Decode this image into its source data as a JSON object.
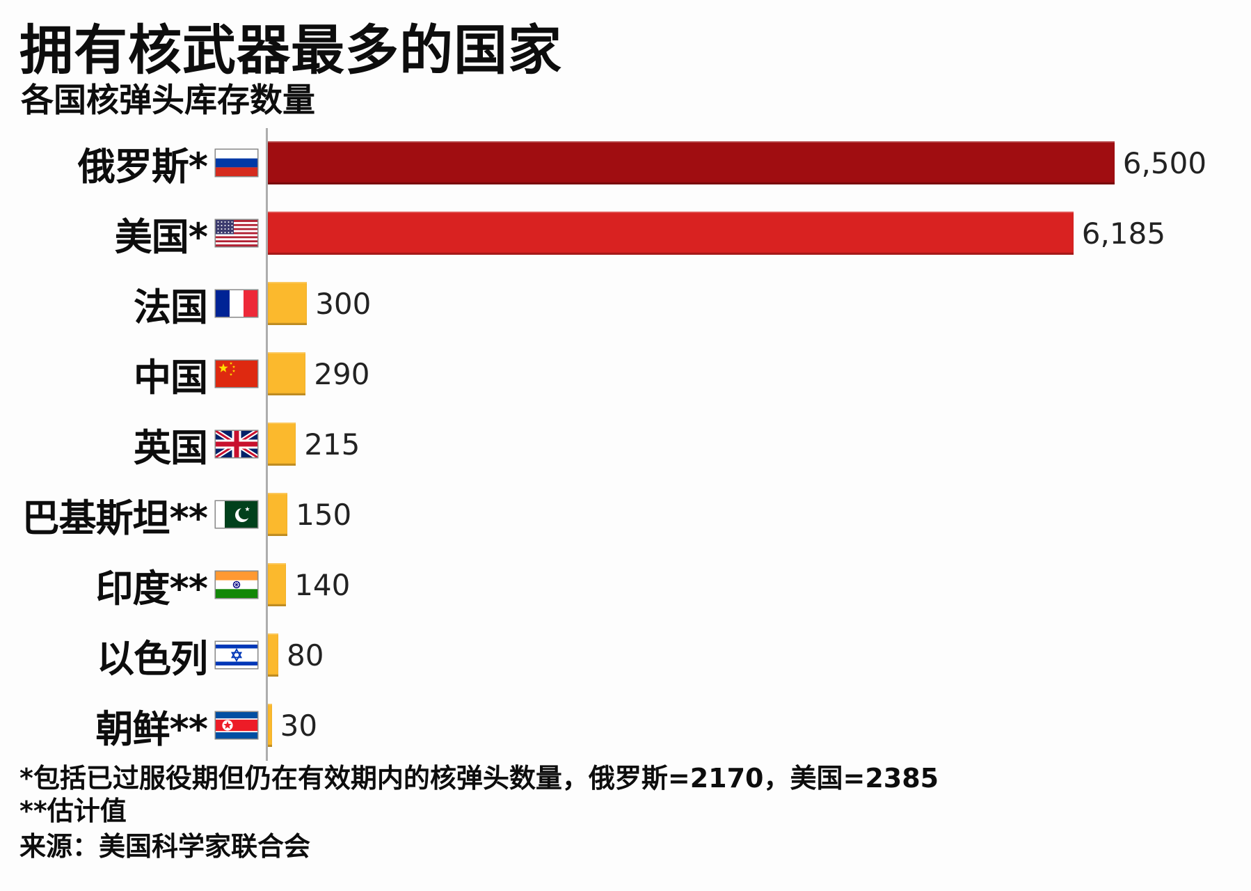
{
  "title": "拥有核武器最多的国家",
  "subtitle": "各国核弹头库存数量",
  "chart_data": {
    "type": "bar",
    "orientation": "horizontal",
    "title": "拥有核武器最多的国家",
    "subtitle": "各国核弹头库存数量",
    "grid": false,
    "legend": "none",
    "xlim": [
      0,
      6900
    ],
    "categories": [
      "俄罗斯*",
      "美国*",
      "法国",
      "中国",
      "英国",
      "巴基斯坦**",
      "印度**",
      "以色列",
      "朝鲜**"
    ],
    "values": [
      6500,
      6185,
      300,
      290,
      215,
      150,
      140,
      80,
      30
    ],
    "value_labels": [
      "6,500",
      "6,185",
      "300",
      "290",
      "215",
      "150",
      "140",
      "80",
      "30"
    ],
    "flags": [
      "russia",
      "usa",
      "france",
      "china",
      "uk",
      "pakistan",
      "india",
      "israel",
      "north-korea"
    ],
    "bar_colors": [
      "#A00D11",
      "#D92221",
      "#FBB92D",
      "#FBB92D",
      "#FBB92D",
      "#FBB92D",
      "#FBB92D",
      "#FBB92D",
      "#FBB92D"
    ]
  },
  "footnotes": [
    "*包括已过服役期但仍在有效期内的核弹头数量，俄罗斯=2170，美国=2385",
    "**估计值"
  ],
  "source": "来源：美国科学家联合会",
  "colors": {
    "russia_bar": "#A00D11",
    "usa_bar": "#D92221",
    "other_bar": "#FBB92D",
    "axis_line": "#ADADAD",
    "text": "#111111"
  }
}
